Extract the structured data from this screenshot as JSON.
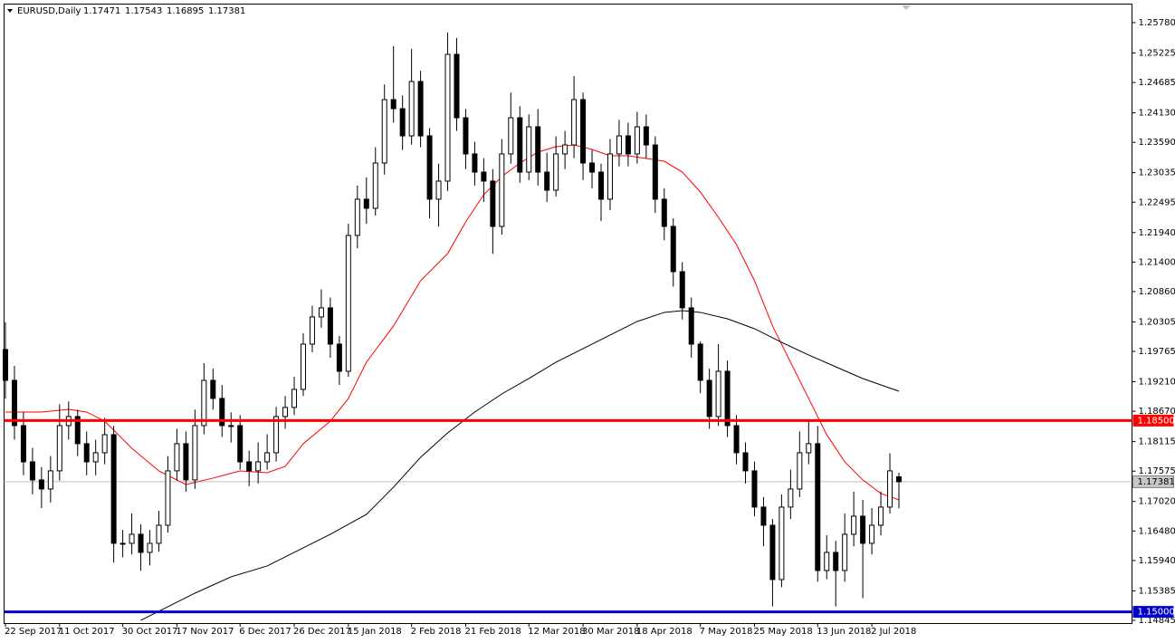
{
  "chart_data": {
    "type": "candlestick",
    "symbol": "EURUSD,Daily",
    "categories": [
      "22 Sep 2017",
      null,
      null,
      null,
      null,
      null,
      "11 Oct 2017",
      null,
      null,
      null,
      null,
      null,
      null,
      "30 Oct 2017",
      null,
      null,
      null,
      null,
      null,
      "17 Nov 2017",
      null,
      null,
      null,
      null,
      null,
      null,
      "6 Dec 2017",
      null,
      null,
      null,
      null,
      null,
      "26 Dec 2017",
      null,
      null,
      null,
      null,
      null,
      "15 Jan 2018",
      null,
      null,
      null,
      null,
      null,
      null,
      "2 Feb 2018",
      null,
      null,
      null,
      null,
      null,
      "21 Feb 2018",
      null,
      null,
      null,
      null,
      null,
      null,
      "12 Mar 2018",
      null,
      null,
      null,
      null,
      null,
      "30 Mar 2018",
      null,
      null,
      null,
      null,
      null,
      "18 Apr 2018",
      null,
      null,
      null,
      null,
      null,
      null,
      "7 May 2018",
      null,
      null,
      null,
      null,
      null,
      "25 May 2018",
      null,
      null,
      null,
      null,
      null,
      null,
      "13 Jun 2018",
      null,
      null,
      null,
      null,
      null,
      "2 Jul 2018",
      null,
      null,
      null
    ],
    "open": [
      1.198,
      1.19236,
      1.18408,
      1.17745,
      1.17414,
      1.17248,
      1.1758,
      1.18408,
      1.18574,
      1.18077,
      1.17745,
      1.17911,
      1.18242,
      1.16254,
      1.16254,
      1.1642,
      1.16088,
      1.16254,
      1.16585,
      1.1758,
      1.18077,
      1.17414,
      1.18408,
      1.19236,
      1.18905,
      1.18408,
      1.18408,
      1.17745,
      1.1758,
      1.17745,
      1.17911,
      1.18574,
      1.1874,
      1.19071,
      1.19899,
      1.20396,
      1.20562,
      1.19899,
      1.19402,
      1.21887,
      1.2255,
      1.22384,
      1.23212,
      1.24372,
      1.24206,
      1.23709,
      1.24703,
      1.23709,
      1.2255,
      1.22881,
      1.252,
      1.2404,
      1.23378,
      1.23046,
      1.22881,
      1.22052,
      1.23378,
      1.2404,
      1.23046,
      1.23875,
      1.23046,
      1.22715,
      1.23378,
      1.23543,
      1.24372,
      1.23212,
      1.23046,
      1.2255,
      1.23378,
      1.23709,
      1.23378,
      1.23875,
      1.23543,
      1.2255,
      1.22052,
      1.21224,
      1.20562,
      1.19899,
      1.19236,
      1.18574,
      1.19402,
      1.18408,
      1.17911,
      1.1758,
      1.16917,
      1.16585,
      1.15591,
      1.16917,
      1.17248,
      1.17911,
      1.18077,
      1.15757,
      1.16088,
      1.15757,
      1.1642,
      1.16751,
      1.16254,
      1.16585,
      1.16917,
      1.17471
    ],
    "high": [
      1.203,
      1.195,
      1.1865,
      1.18,
      1.1765,
      1.1785,
      1.188,
      1.1885,
      1.187,
      1.183,
      1.1815,
      1.1855,
      1.184,
      1.165,
      1.168,
      1.166,
      1.165,
      1.1685,
      1.1785,
      1.1835,
      1.183,
      1.187,
      1.1955,
      1.1945,
      1.1915,
      1.1865,
      1.186,
      1.1795,
      1.181,
      1.1825,
      1.1875,
      1.1895,
      1.193,
      1.201,
      1.206,
      1.209,
      1.2075,
      1.2005,
      1.221,
      1.228,
      1.2295,
      1.235,
      1.2465,
      1.2535,
      1.2445,
      1.253,
      1.249,
      1.2385,
      1.232,
      1.256,
      1.255,
      1.242,
      1.236,
      1.233,
      1.231,
      1.2365,
      1.245,
      1.2425,
      1.241,
      1.242,
      1.234,
      1.237,
      1.238,
      1.248,
      1.245,
      1.2345,
      1.232,
      1.2365,
      1.24,
      1.2395,
      1.2415,
      1.241,
      1.237,
      1.2275,
      1.222,
      1.214,
      1.2075,
      1.1995,
      1.1945,
      1.199,
      1.196,
      1.186,
      1.181,
      1.1775,
      1.171,
      1.167,
      1.1715,
      1.176,
      1.183,
      1.185,
      1.184,
      1.164,
      1.163,
      1.168,
      1.172,
      1.1705,
      1.169,
      1.172,
      1.179,
      1.17543
    ],
    "low": [
      1.189,
      1.1815,
      1.175,
      1.1715,
      1.169,
      1.17,
      1.174,
      1.1815,
      1.1785,
      1.175,
      1.175,
      1.177,
      1.159,
      1.16,
      1.1605,
      1.1575,
      1.1585,
      1.161,
      1.1645,
      1.174,
      1.172,
      1.1725,
      1.1825,
      1.187,
      1.182,
      1.181,
      1.176,
      1.173,
      1.1735,
      1.176,
      1.1775,
      1.1835,
      1.186,
      1.1895,
      1.1975,
      1.202,
      1.1965,
      1.1915,
      1.193,
      1.2165,
      1.221,
      1.2225,
      1.23,
      1.2395,
      1.2345,
      1.2355,
      1.235,
      1.222,
      1.2205,
      1.227,
      1.238,
      1.231,
      1.228,
      1.225,
      1.2155,
      1.219,
      1.232,
      1.2285,
      1.229,
      1.228,
      1.225,
      1.226,
      1.231,
      1.233,
      1.229,
      1.2275,
      1.2215,
      1.2235,
      1.2315,
      1.2315,
      1.232,
      1.233,
      1.223,
      1.218,
      1.2095,
      1.2035,
      1.1965,
      1.19,
      1.1835,
      1.184,
      1.182,
      1.177,
      1.1735,
      1.1675,
      1.162,
      1.151,
      1.1545,
      1.167,
      1.171,
      1.177,
      1.1555,
      1.156,
      1.151,
      1.1555,
      1.162,
      1.1525,
      1.1605,
      1.164,
      1.168,
      1.16895
    ],
    "close": [
      1.19236,
      1.18408,
      1.17745,
      1.17414,
      1.17248,
      1.1758,
      1.18408,
      1.18574,
      1.18077,
      1.17745,
      1.17911,
      1.18242,
      1.16254,
      1.16254,
      1.1642,
      1.16088,
      1.16254,
      1.16585,
      1.1758,
      1.18077,
      1.17414,
      1.18408,
      1.19236,
      1.18905,
      1.18408,
      1.18408,
      1.17745,
      1.1758,
      1.17745,
      1.17911,
      1.18574,
      1.1874,
      1.19071,
      1.19899,
      1.20396,
      1.20562,
      1.19899,
      1.19402,
      1.21887,
      1.2255,
      1.22384,
      1.23212,
      1.24372,
      1.24206,
      1.23709,
      1.24703,
      1.23709,
      1.2255,
      1.22881,
      1.252,
      1.2404,
      1.23378,
      1.23046,
      1.22881,
      1.22052,
      1.23378,
      1.2404,
      1.23046,
      1.23875,
      1.23046,
      1.22715,
      1.23378,
      1.23543,
      1.24372,
      1.23212,
      1.23046,
      1.2255,
      1.23378,
      1.23709,
      1.23378,
      1.23875,
      1.23543,
      1.2255,
      1.22052,
      1.21224,
      1.20562,
      1.19899,
      1.19236,
      1.18574,
      1.19402,
      1.18408,
      1.17911,
      1.1758,
      1.16917,
      1.16585,
      1.15591,
      1.16917,
      1.17248,
      1.17911,
      1.18077,
      1.15757,
      1.16088,
      1.15757,
      1.1642,
      1.16751,
      1.16254,
      1.16585,
      1.16917,
      1.1758,
      1.17381
    ],
    "moving_averages": [
      {
        "color": "#ff0000",
        "x": [
          0,
          4,
          7,
          9,
          11,
          14,
          17,
          20,
          23,
          26,
          29,
          31,
          33,
          36,
          38,
          40,
          43,
          46,
          49,
          51,
          53,
          55,
          57,
          59,
          61,
          63,
          65,
          67,
          69,
          71,
          73,
          75,
          77,
          79,
          81,
          83,
          85,
          87,
          89,
          91,
          93,
          95,
          97,
          99
        ],
        "values": [
          1.18656,
          1.18656,
          1.18706,
          1.18656,
          1.1849,
          1.17993,
          1.17579,
          1.1733,
          1.17447,
          1.17579,
          1.17546,
          1.17662,
          1.18076,
          1.1849,
          1.18905,
          1.19567,
          1.2023,
          1.21058,
          1.21555,
          1.22135,
          1.22632,
          1.22964,
          1.23212,
          1.23411,
          1.2351,
          1.23543,
          1.23461,
          1.23345,
          1.23345,
          1.23295,
          1.23245,
          1.23046,
          1.22682,
          1.22218,
          1.21721,
          1.21058,
          1.2023,
          1.19567,
          1.18905,
          1.18242,
          1.17745,
          1.17414,
          1.17165,
          1.17049
        ]
      },
      {
        "color": "#000000",
        "x": [
          15,
          17,
          21,
          25,
          29,
          33,
          36,
          40,
          43,
          46,
          49,
          52,
          55,
          58,
          61,
          64,
          67,
          70,
          73,
          75,
          77,
          80,
          83,
          86,
          89,
          92,
          95,
          97,
          99
        ],
        "values": [
          1.14846,
          1.15011,
          1.15342,
          1.15641,
          1.1584,
          1.16171,
          1.1642,
          1.16784,
          1.17281,
          1.17828,
          1.18275,
          1.18656,
          1.18987,
          1.19269,
          1.19567,
          1.19816,
          1.20064,
          1.20313,
          1.20479,
          1.20512,
          1.20479,
          1.20362,
          1.2018,
          1.19932,
          1.197,
          1.19484,
          1.19269,
          1.19153,
          1.19037
        ]
      }
    ],
    "levels": [
      {
        "value": 1.185,
        "label": "1.18500",
        "color": "#ff0000"
      },
      {
        "value": 1.15,
        "label": "1.15000",
        "color": "#0000cc"
      }
    ],
    "ylim": [
      1.14795,
      1.26095
    ],
    "yticks": [
      {
        "value": 1.2578,
        "label": "1.25780"
      },
      1.25225,
      1.24685,
      {
        "value": 1.2413,
        "label": "1.24130"
      },
      {
        "value": 1.2359,
        "label": "1.23590"
      },
      1.23035,
      1.22495,
      {
        "value": 1.2194,
        "label": "1.21940"
      },
      {
        "value": 1.214,
        "label": "1.21400"
      },
      {
        "value": 1.2086,
        "label": "1.20860"
      },
      1.20305,
      1.19765,
      {
        "value": 1.1921,
        "label": "1.19210"
      },
      {
        "value": 1.1867,
        "label": "1.18670"
      },
      1.18115,
      1.17575,
      {
        "value": 1.1702,
        "label": "1.17020"
      },
      {
        "value": 1.1648,
        "label": "1.16480"
      },
      {
        "value": 1.1594,
        "label": "1.15940"
      },
      1.15385,
      1.14845
    ]
  }
}
